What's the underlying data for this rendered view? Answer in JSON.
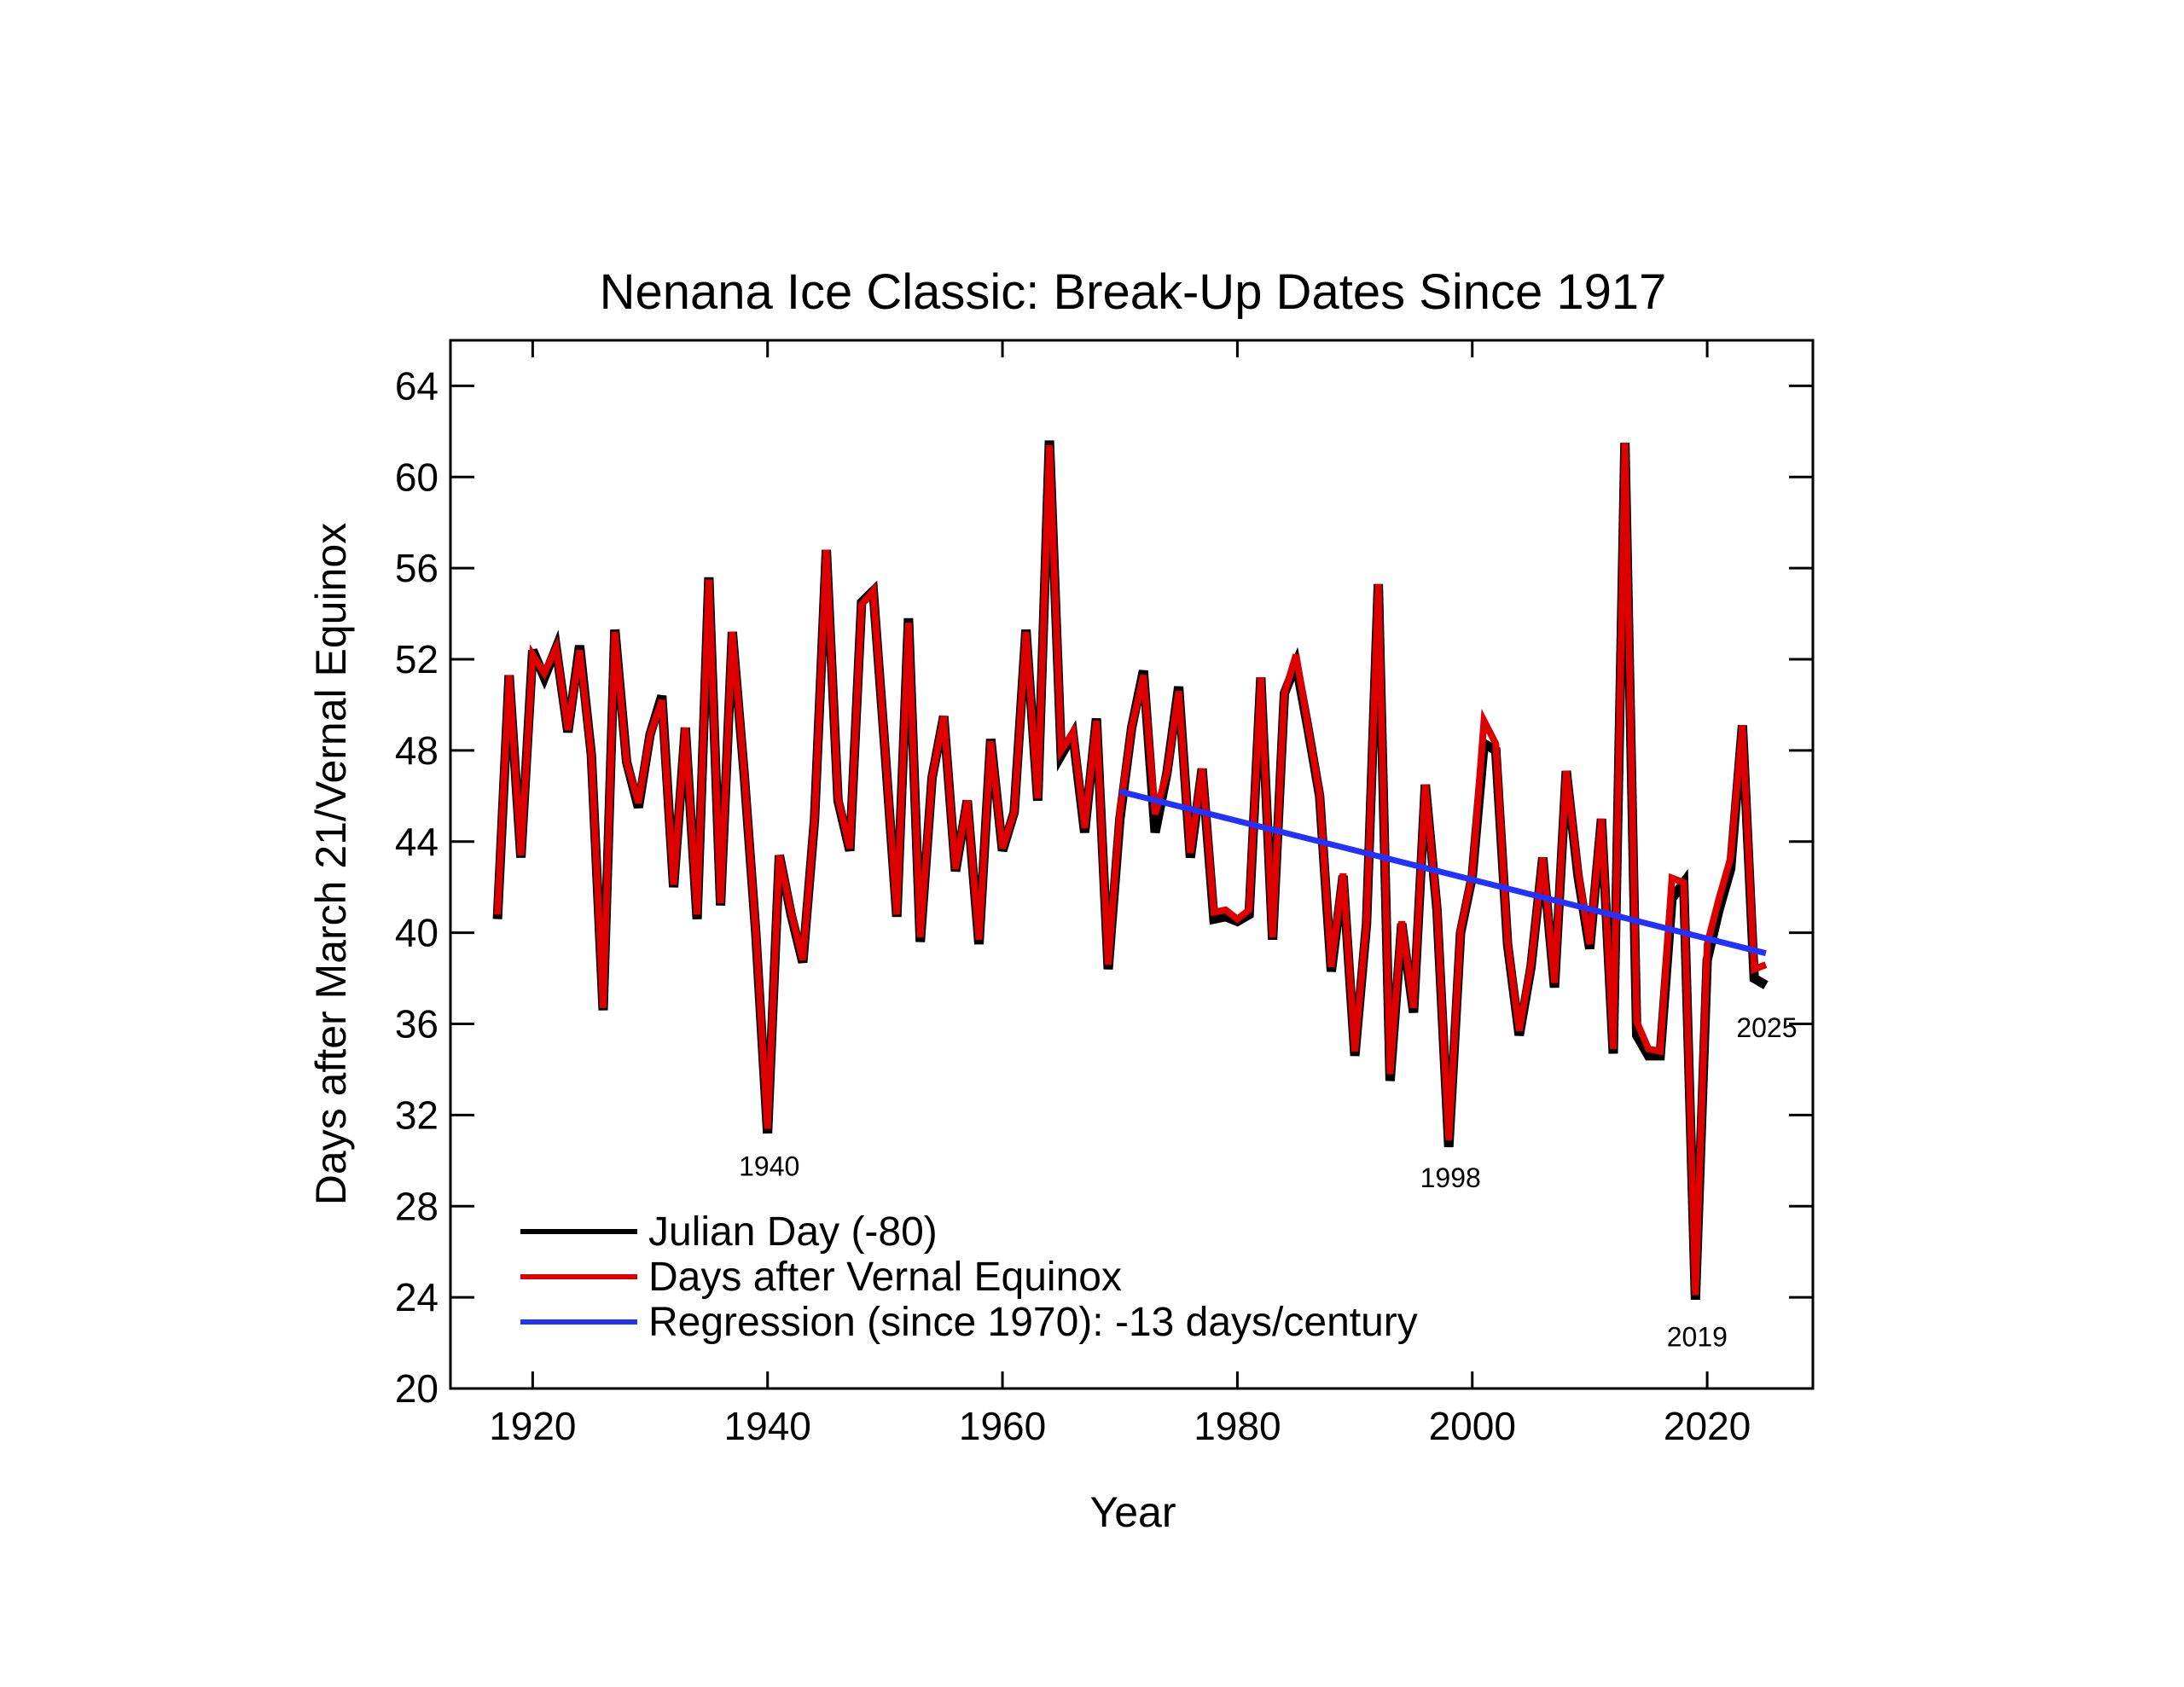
{
  "chart_data": {
    "type": "line",
    "title": "Nenana Ice Classic: Break-Up Dates Since 1917",
    "xlabel": "Year",
    "ylabel": "Days after March 21/Vernal Equinox",
    "xlim": [
      1913,
      2029
    ],
    "ylim": [
      20,
      66
    ],
    "xticks": [
      1920,
      1940,
      1960,
      1980,
      2000,
      2020
    ],
    "yticks": [
      20,
      24,
      28,
      32,
      36,
      40,
      44,
      48,
      52,
      56,
      60,
      64
    ],
    "grid": false,
    "legend_position": "bottom-left",
    "x": [
      1917,
      1918,
      1919,
      1920,
      1921,
      1922,
      1923,
      1924,
      1925,
      1926,
      1927,
      1928,
      1929,
      1930,
      1931,
      1932,
      1933,
      1934,
      1935,
      1936,
      1937,
      1938,
      1939,
      1940,
      1941,
      1942,
      1943,
      1944,
      1945,
      1946,
      1947,
      1948,
      1949,
      1950,
      1951,
      1952,
      1953,
      1954,
      1955,
      1956,
      1957,
      1958,
      1959,
      1960,
      1961,
      1962,
      1963,
      1964,
      1965,
      1966,
      1967,
      1968,
      1969,
      1970,
      1971,
      1972,
      1973,
      1974,
      1975,
      1976,
      1977,
      1978,
      1979,
      1980,
      1981,
      1982,
      1983,
      1984,
      1985,
      1986,
      1987,
      1988,
      1989,
      1990,
      1991,
      1992,
      1993,
      1994,
      1995,
      1996,
      1997,
      1998,
      1999,
      2000,
      2001,
      2002,
      2003,
      2004,
      2005,
      2006,
      2007,
      2008,
      2009,
      2010,
      2011,
      2012,
      2013,
      2014,
      2015,
      2016,
      2017,
      2018,
      2019,
      2020,
      2021,
      2022,
      2023,
      2024,
      2025
    ],
    "series": [
      {
        "name": "Julian Day (-80)",
        "color": "#000000",
        "values": [
          40.6,
          51.3,
          43.3,
          52.4,
          51.2,
          52.5,
          48.8,
          52.6,
          47.8,
          36.6,
          53.3,
          47.5,
          45.5,
          48.7,
          50.4,
          42.0,
          49.0,
          40.6,
          55.6,
          41.2,
          53.2,
          47.0,
          40.0,
          31.2,
          43.4,
          40.8,
          38.7,
          45.0,
          56.8,
          45.8,
          43.6,
          54.5,
          55.0,
          48.0,
          40.7,
          53.8,
          39.6,
          46.8,
          49.5,
          42.7,
          45.8,
          39.5,
          48.5,
          43.6,
          45.3,
          53.3,
          45.8,
          61.6,
          47.8,
          48.7,
          44.4,
          49.4,
          38.4,
          45.0,
          49.0,
          51.5,
          44.4,
          47.0,
          50.8,
          43.3,
          47.2,
          40.6,
          40.7,
          40.5,
          40.8,
          51.2,
          39.7,
          50.5,
          51.8,
          49.0,
          46.0,
          38.3,
          42.5,
          34.6,
          40.4,
          55.3,
          33.5,
          40.4,
          36.5,
          46.5,
          41.0,
          30.6,
          40.0,
          42.5,
          48.3,
          48.0,
          39.5,
          35.5,
          38.5,
          43.3,
          37.6,
          47.1,
          42.5,
          39.3,
          45.0,
          34.7,
          61.5,
          35.5,
          34.6,
          34.6,
          41.5,
          42.2,
          23.9,
          38.8,
          41.0,
          42.8,
          49.1,
          38.0,
          37.7
        ]
      },
      {
        "name": "Days after Vernal Equinox",
        "color": "#dd0000",
        "values": [
          40.8,
          51.3,
          43.4,
          52.2,
          51.4,
          52.5,
          48.9,
          52.4,
          47.8,
          36.7,
          53.2,
          47.5,
          45.7,
          48.7,
          50.2,
          42.1,
          49.0,
          40.8,
          55.5,
          41.3,
          53.2,
          47.1,
          40.1,
          31.4,
          43.4,
          40.9,
          38.8,
          45.0,
          56.8,
          45.9,
          43.7,
          54.4,
          55.0,
          48.1,
          40.8,
          53.6,
          39.8,
          46.8,
          49.5,
          42.8,
          45.8,
          39.7,
          48.4,
          43.7,
          45.3,
          53.2,
          45.9,
          61.4,
          48.0,
          48.8,
          44.6,
          49.3,
          38.6,
          45.3,
          49.0,
          51.3,
          45.2,
          47.0,
          50.6,
          43.5,
          47.2,
          40.9,
          41.0,
          40.6,
          41.0,
          51.2,
          39.8,
          50.5,
          52.2,
          49.1,
          46.1,
          38.5,
          42.6,
          34.8,
          40.5,
          55.3,
          33.8,
          40.5,
          36.7,
          46.5,
          41.1,
          30.9,
          40.1,
          42.6,
          49.3,
          48.3,
          39.6,
          35.7,
          38.6,
          43.3,
          37.8,
          47.1,
          42.7,
          39.5,
          45.0,
          34.9,
          61.5,
          36.1,
          34.9,
          34.8,
          42.4,
          42.2,
          24.1,
          39.5,
          41.5,
          43.3,
          49.1,
          38.4,
          38.6
        ]
      },
      {
        "name": "Regression (since 1970): -13 days/century",
        "color": "#2233ff",
        "x": [
          1970,
          2025
        ],
        "values": [
          46.2,
          39.1
        ]
      }
    ],
    "annotations": [
      {
        "text": "1940",
        "x": 1940,
        "y": 31.4
      },
      {
        "text": "1998",
        "x": 1998,
        "y": 30.9
      },
      {
        "text": "2019",
        "x": 2019,
        "y": 24.1
      },
      {
        "text": "2025",
        "x": 2025,
        "y": 38.6
      }
    ]
  }
}
